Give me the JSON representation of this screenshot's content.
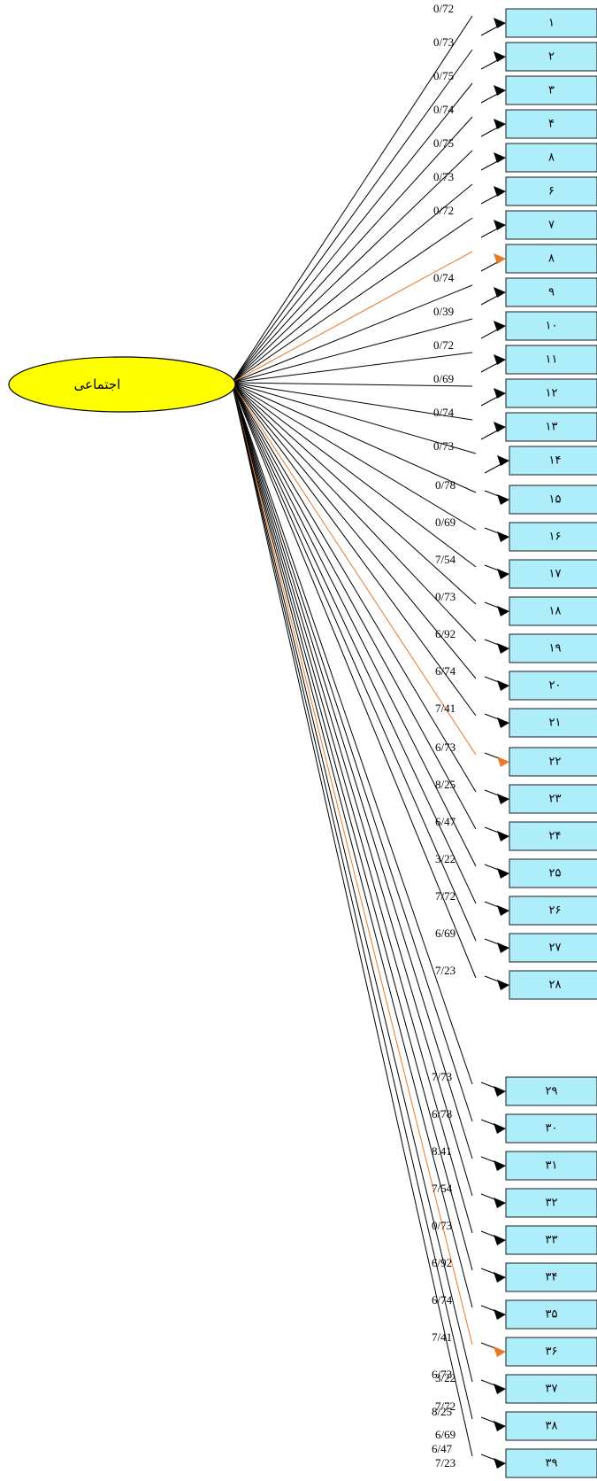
{
  "latent": {
    "label": "اجتماعی",
    "color": "#ffff00"
  },
  "colors": {
    "box": "#aeeefa",
    "line": "#000000",
    "highlight": "#e8782a"
  },
  "indicators": [
    {
      "label": "١",
      "coef": "0/72"
    },
    {
      "label": "٢",
      "coef": "0/73"
    },
    {
      "label": "٣",
      "coef": "0/75"
    },
    {
      "label": "۴",
      "coef": "0/74"
    },
    {
      "label": "٨",
      "coef": "0/75"
    },
    {
      "label": "۶",
      "coef": "0/73"
    },
    {
      "label": "٧",
      "coef": "0/72"
    },
    {
      "label": "٨",
      "coef": "",
      "highlight": true
    },
    {
      "label": "٩",
      "coef": "0/74"
    },
    {
      "label": "١٠",
      "coef": "0/39"
    },
    {
      "label": "١١",
      "coef": "0/72"
    },
    {
      "label": "١٢",
      "coef": "0/69"
    },
    {
      "label": "١٣",
      "coef": "0/74"
    },
    {
      "label": "١۴",
      "coef": "0/73"
    },
    {
      "label": "١۵",
      "coef": "0/78"
    },
    {
      "label": "١۶",
      "coef": "0/69"
    },
    {
      "label": "١٧",
      "coef": "7/54"
    },
    {
      "label": "١٨",
      "coef": "0/73"
    },
    {
      "label": "١٩",
      "coef": "6/92"
    },
    {
      "label": "٢٠",
      "coef": "6/74"
    },
    {
      "label": "٢١",
      "coef": "7/41"
    },
    {
      "label": "٢٢",
      "coef": "6/73",
      "highlight": true
    },
    {
      "label": "٢٣",
      "coef": "8/25"
    },
    {
      "label": "٢۴",
      "coef": "6/47"
    },
    {
      "label": "٢۵",
      "coef": "3/22"
    },
    {
      "label": "٢۶",
      "coef": "7/72"
    },
    {
      "label": "٢٧",
      "coef": "6/69"
    },
    {
      "label": "٢٨",
      "coef": "7/23"
    },
    {
      "label": "٢٩",
      "coef": "7/73"
    },
    {
      "label": "٣٠",
      "coef": "6/78"
    },
    {
      "label": "٣١",
      "coef": "8.41"
    },
    {
      "label": "٣٢",
      "coef": "7/54"
    },
    {
      "label": "٣٣",
      "coef": "0/73"
    },
    {
      "label": "٣۴",
      "coef": "6/92"
    },
    {
      "label": "٣۵",
      "coef": "6/74"
    },
    {
      "label": "٣۶",
      "coef": "7/41",
      "highlight": true
    },
    {
      "label": "٣٧",
      "coef": "6/73"
    },
    {
      "label": "٣٨",
      "coef": "8/25"
    },
    {
      "label": "٣٩",
      "coef": "6/47"
    }
  ],
  "extra_coefs": [
    "3/22",
    "7/72",
    "6/69",
    "7/23"
  ]
}
